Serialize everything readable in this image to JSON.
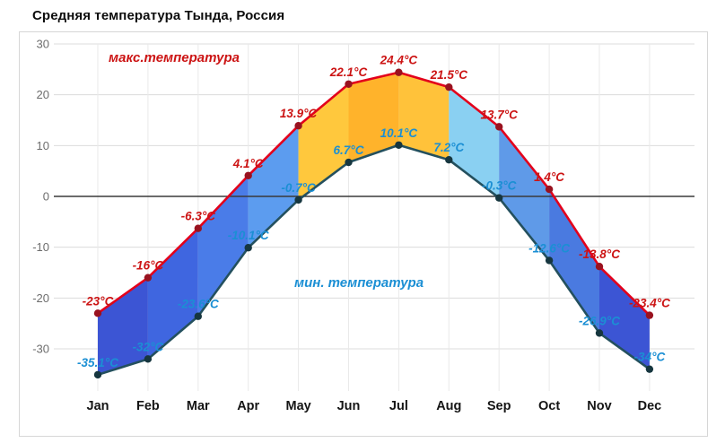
{
  "chart_data": {
    "type": "line",
    "title": "Средняя температура Тында, Россия",
    "xlabel": "",
    "ylabel": "",
    "unit": "°C",
    "categories": [
      "Jan",
      "Feb",
      "Mar",
      "Apr",
      "May",
      "Jun",
      "Jul",
      "Aug",
      "Sep",
      "Oct",
      "Nov",
      "Dec"
    ],
    "series": [
      {
        "name": "макс.температура",
        "values": [
          -23,
          -16,
          -6.3,
          4.1,
          13.9,
          22.1,
          24.4,
          21.5,
          13.7,
          1.4,
          -13.8,
          -23.4
        ],
        "line_color": "#e3001b",
        "marker_color": "#99121f",
        "label_color": "#cc1414"
      },
      {
        "name": "мин. температура",
        "values": [
          -35.1,
          -32,
          -23.6,
          -10.1,
          -0.7,
          6.7,
          10.1,
          7.2,
          -0.3,
          -12.6,
          -26.9,
          -34
        ],
        "line_color": "#24505e",
        "marker_color": "#16363f",
        "label_color": "#1b8fd4"
      }
    ],
    "y_ticks": [
      30,
      20,
      10,
      0,
      -10,
      -20,
      -30
    ],
    "ylim": [
      -38,
      30
    ],
    "grid": true,
    "zero_line": true,
    "legend_position": "inside-annotations",
    "band_colors": [
      "#3c55d4",
      "#3f66e0",
      "#4a7ce8",
      "#5c9cef",
      "#ffc83d",
      "#ffb32b",
      "#ffc23a",
      "#8ad0f2",
      "#5f9ae8",
      "#4a7ae0",
      "#3c55d4"
    ]
  }
}
